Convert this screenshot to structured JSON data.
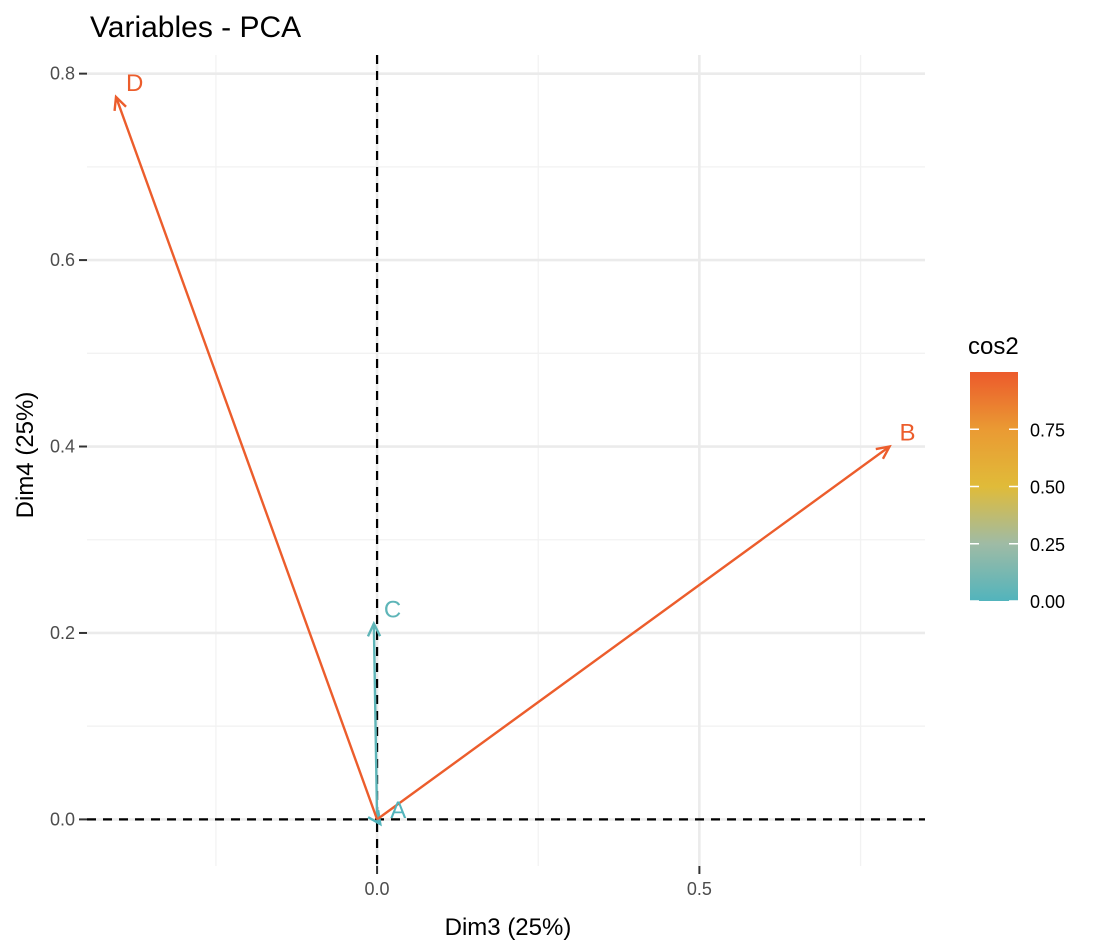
{
  "chart_data": {
    "type": "scatter",
    "subtype": "pca-variable-correlation-arrows",
    "title": "Variables - PCA",
    "xlabel": "Dim3 (25%)",
    "ylabel": "Dim4 (25%)",
    "xlim": [
      -0.45,
      0.85
    ],
    "ylim": [
      -0.05,
      0.82
    ],
    "x_ticks": [
      {
        "value": 0.0,
        "label": "0.0"
      },
      {
        "value": 0.5,
        "label": "0.5"
      }
    ],
    "y_ticks": [
      {
        "value": 0.0,
        "label": "0.0"
      },
      {
        "value": 0.2,
        "label": "0.2"
      },
      {
        "value": 0.4,
        "label": "0.4"
      },
      {
        "value": 0.6,
        "label": "0.6"
      },
      {
        "value": 0.8,
        "label": "0.8"
      }
    ],
    "x_minor_gridlines": [
      -0.25,
      0.25,
      0.75
    ],
    "y_minor_gridlines": [
      0.1,
      0.3,
      0.5,
      0.7
    ],
    "grid": true,
    "reference_lines": {
      "x": 0,
      "y": 0,
      "style": "dashed"
    },
    "variables": [
      {
        "name": "A",
        "x": 0.005,
        "y": -0.005,
        "cos2": 0.0
      },
      {
        "name": "B",
        "x": 0.795,
        "y": 0.4,
        "cos2": 0.99
      },
      {
        "name": "C",
        "x": -0.005,
        "y": 0.21,
        "cos2": 0.04
      },
      {
        "name": "D",
        "x": -0.405,
        "y": 0.775,
        "cos2": 0.99
      }
    ],
    "color_scale": {
      "variable": "cos2",
      "title": "cos2",
      "range": [
        0,
        1
      ],
      "stops": [
        {
          "value": 0.0,
          "color": "#52b4bc"
        },
        {
          "value": 0.25,
          "color": "#9fbba5"
        },
        {
          "value": 0.5,
          "color": "#e0bb39"
        },
        {
          "value": 0.75,
          "color": "#ea9a33"
        },
        {
          "value": 1.0,
          "color": "#ec5a2c"
        }
      ],
      "breaks": [
        {
          "value": 0.0,
          "label": "0.00"
        },
        {
          "value": 0.25,
          "label": "0.25"
        },
        {
          "value": 0.5,
          "label": "0.50"
        },
        {
          "value": 0.75,
          "label": "0.75"
        }
      ]
    },
    "legend_position": "right"
  }
}
